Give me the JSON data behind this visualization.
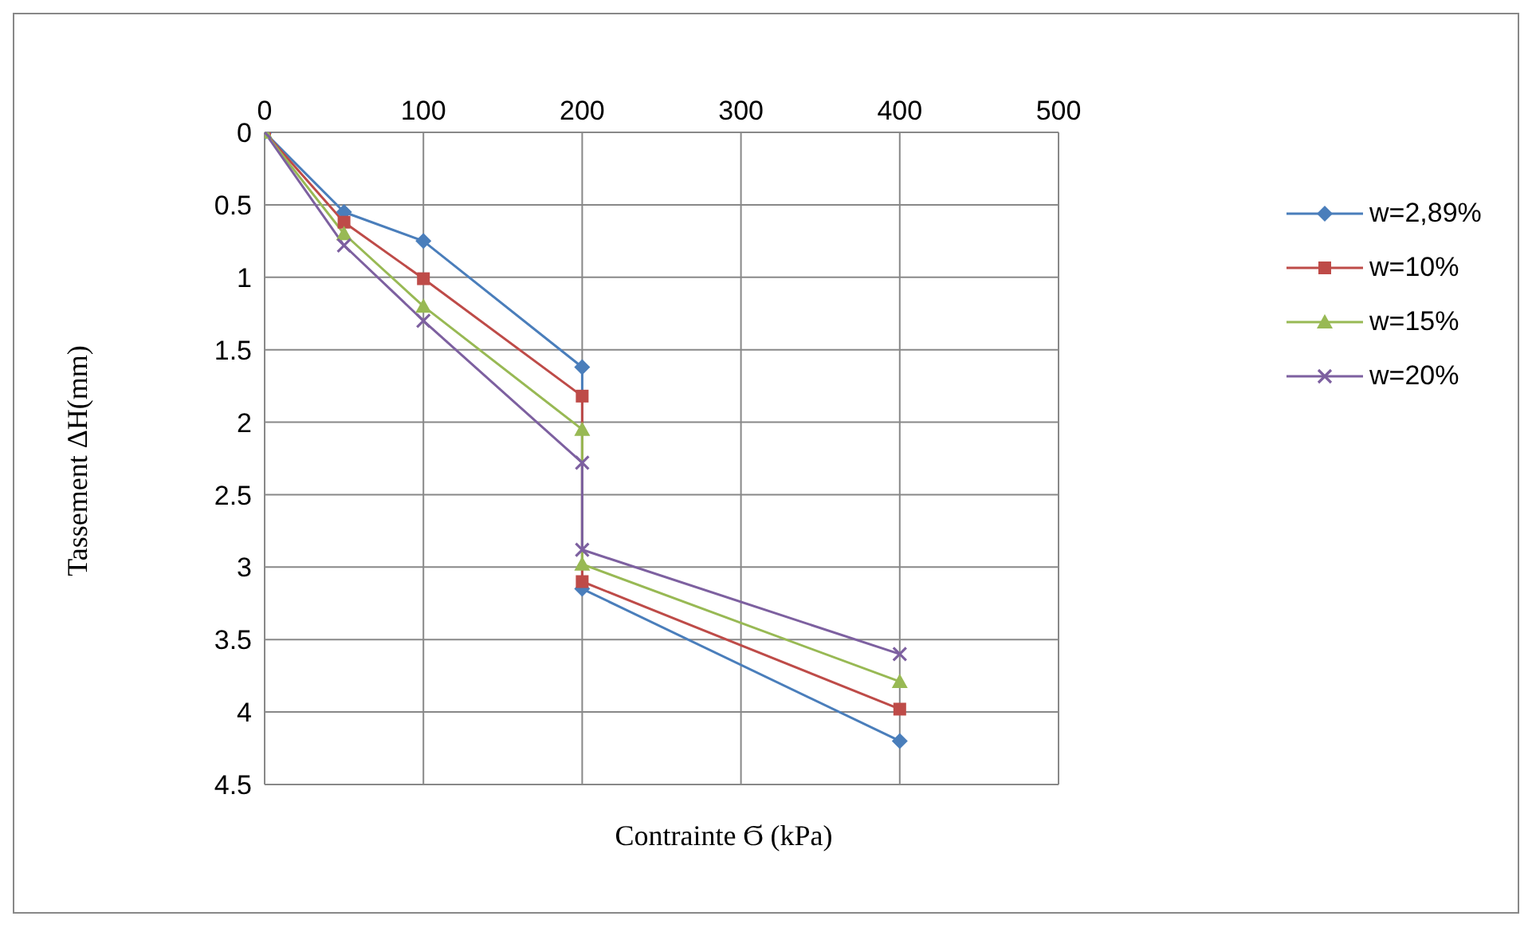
{
  "chart_data": {
    "type": "line",
    "xlabel": "Contrainte Ϭ (kPa)",
    "ylabel": "Tassement ΔH(mm)",
    "x": [
      0,
      50,
      100,
      200,
      200,
      400
    ],
    "series": [
      {
        "name": "w=2,89%",
        "color": "#4a7ebb",
        "marker": "diamond",
        "values": [
          0,
          0.55,
          0.75,
          1.62,
          3.15,
          4.2
        ]
      },
      {
        "name": "w=10%",
        "color": "#be4b48",
        "marker": "square",
        "values": [
          0,
          0.62,
          1.01,
          1.82,
          3.1,
          3.98
        ]
      },
      {
        "name": "w=15%",
        "color": "#98b954",
        "marker": "triangle",
        "values": [
          0,
          0.7,
          1.2,
          2.05,
          2.98,
          3.79
        ]
      },
      {
        "name": "w=20%",
        "color": "#7d60a0",
        "marker": "cross",
        "values": [
          0,
          0.78,
          1.3,
          2.28,
          2.88,
          3.6
        ]
      }
    ],
    "xlim": [
      0,
      500
    ],
    "xticks": [
      0,
      100,
      200,
      300,
      400,
      500
    ],
    "ylim": [
      4.5,
      0
    ],
    "yticks": [
      0,
      0.5,
      1,
      1.5,
      2,
      2.5,
      3,
      3.5,
      4,
      4.5
    ],
    "grid": true,
    "legend": "right"
  }
}
